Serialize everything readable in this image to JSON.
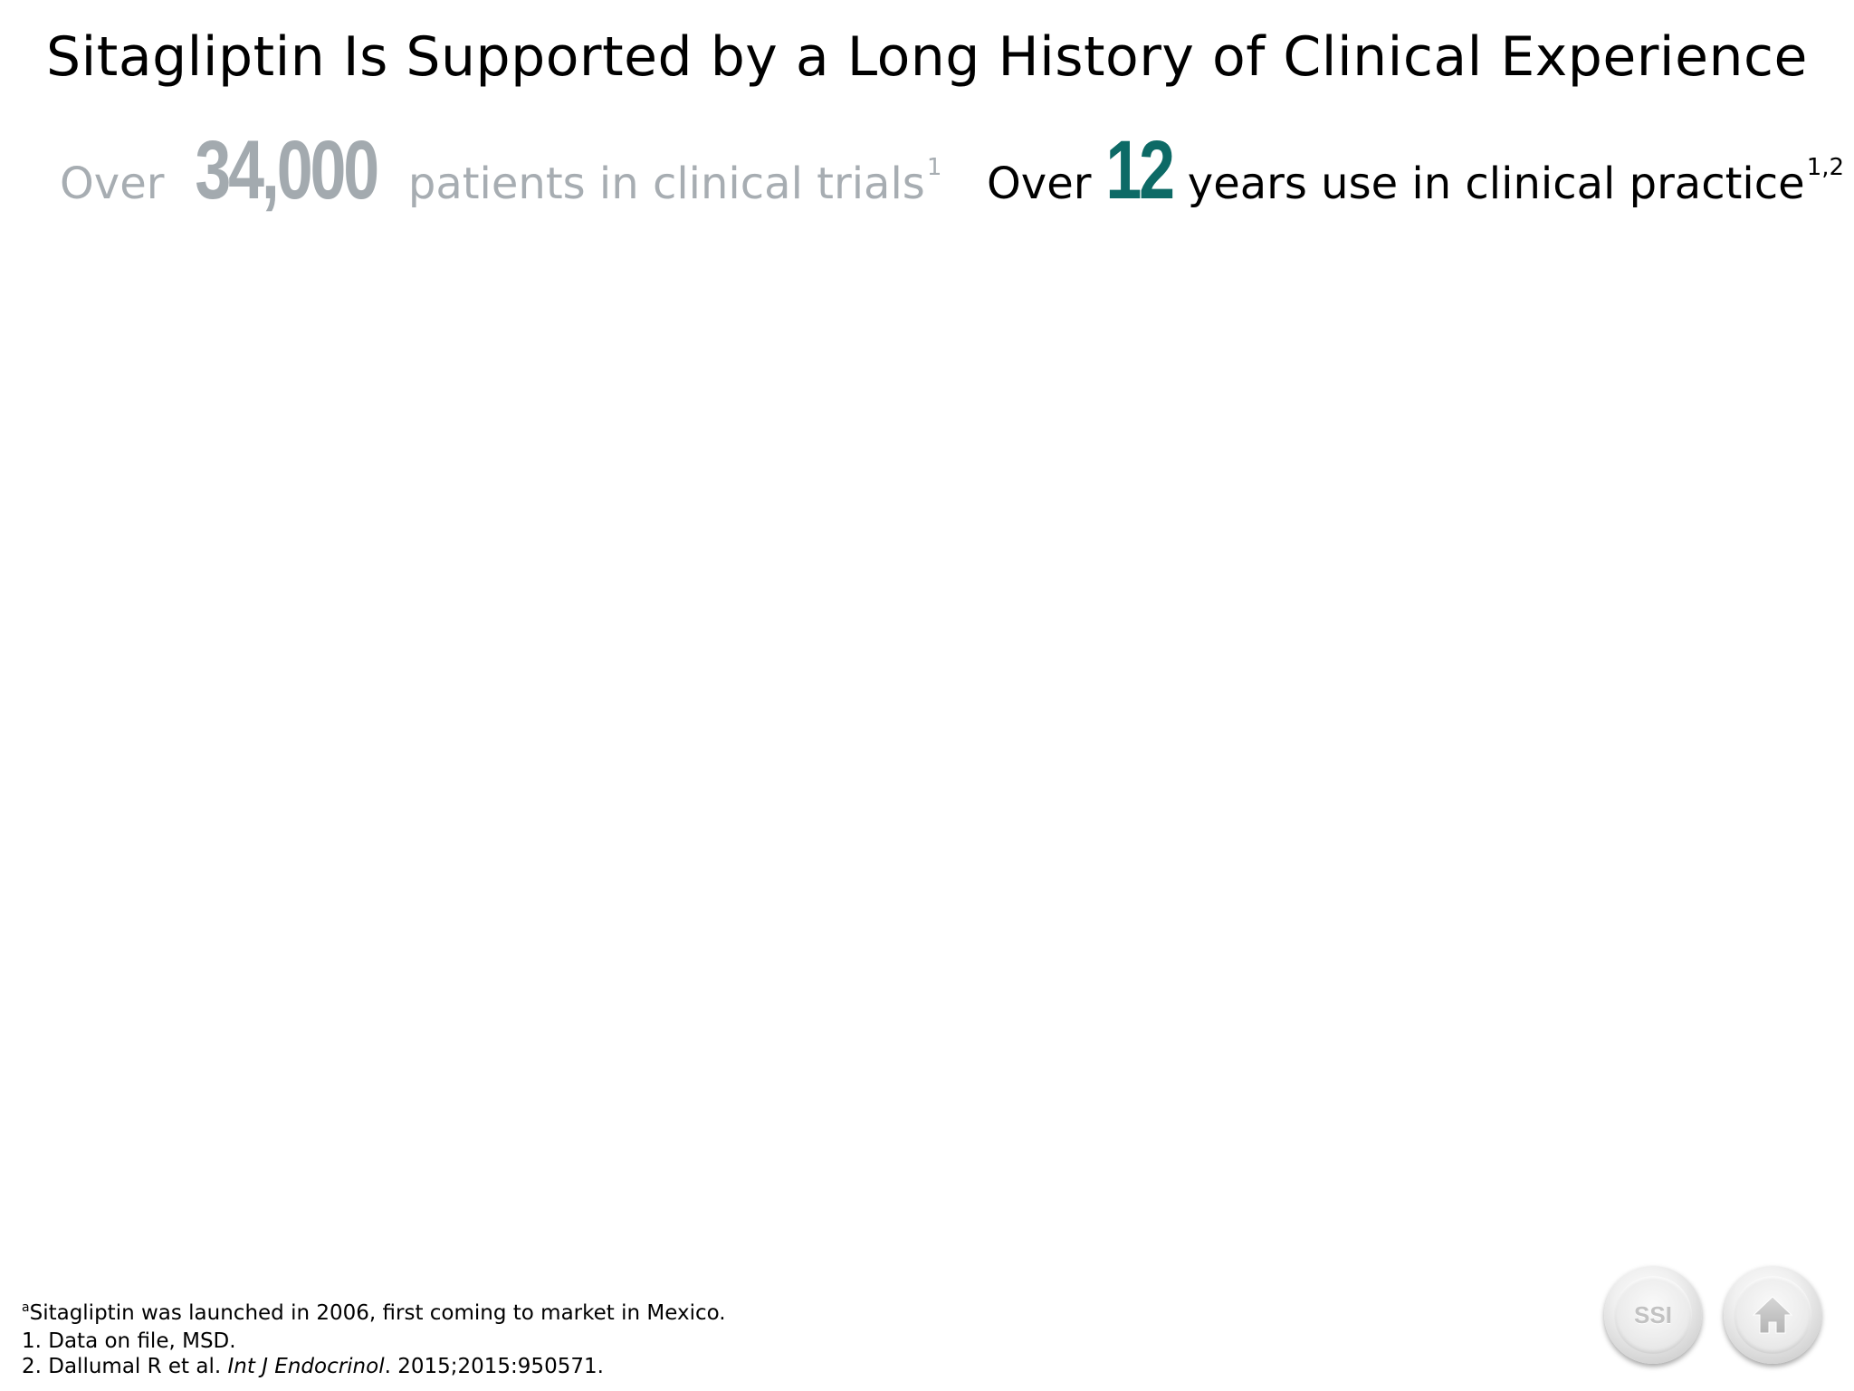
{
  "title": "Sitagliptin Is Supported by a Long History of Clinical Experience",
  "stats": {
    "trials": {
      "prefix": "Over",
      "number": "34,000",
      "suffix": "patients in clinical trials",
      "reference": "1"
    },
    "practice": {
      "prefix": "Over",
      "number": "12",
      "suffix": "years use in clinical practice",
      "reference": "1,2"
    }
  },
  "footnotes": {
    "note_a_marker": "a",
    "note_a": "Sitagliptin was launched in 2006, first coming to market in Mexico.",
    "ref1": "1. Data on file, MSD.",
    "ref2_authors": "2. Dallumal R et al. ",
    "ref2_journal": "Int J Endocrinol",
    "ref2_details": ". 2015;2015:950571."
  },
  "nav": {
    "ssi_label": "SSI",
    "home_icon": "home-icon"
  },
  "colors": {
    "trials_number": "#a3aaaf",
    "practice_number": "#0d6a66",
    "trials_text": "#a7adb2"
  }
}
